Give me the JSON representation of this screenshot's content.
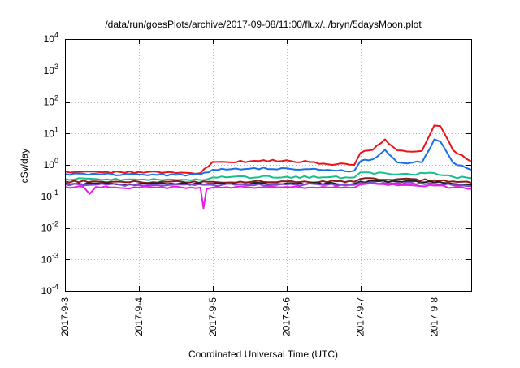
{
  "chart_data": {
    "type": "line",
    "title": "/data/run/goesPlots/archive/2017-09-08/11:00/flux/../bryn/5daysMoon.plot",
    "xlabel": "Coordinated Universal Time (UTC)",
    "ylabel": "cSv/day",
    "yscale": "log",
    "ylim": [
      0.0001,
      10000
    ],
    "y_ticks": [
      {
        "base": "10",
        "exp": "-4",
        "value": 0.0001
      },
      {
        "base": "10",
        "exp": "-3",
        "value": 0.001
      },
      {
        "base": "10",
        "exp": "-2",
        "value": 0.01
      },
      {
        "base": "10",
        "exp": "-1",
        "value": 0.1
      },
      {
        "base": "10",
        "exp": "0",
        "value": 1
      },
      {
        "base": "10",
        "exp": "1",
        "value": 10
      },
      {
        "base": "10",
        "exp": "2",
        "value": 100
      },
      {
        "base": "10",
        "exp": "3",
        "value": 1000
      },
      {
        "base": "10",
        "exp": "4",
        "value": 10000
      }
    ],
    "x_axis": "date",
    "xlim": [
      "2017-09-03",
      "2017-09-08T12:00"
    ],
    "x_ticks": [
      "2017-9-3",
      "2017-9-4",
      "2017-9-5",
      "2017-9-6",
      "2017-9-7",
      "2017-9-8"
    ],
    "grid": true,
    "legend": "none",
    "series": [
      {
        "color": "#e8141b",
        "x": [
          "2017-09-03",
          "2017-09-03T12:00",
          "2017-09-04",
          "2017-09-04T12:00",
          "2017-09-04T20:00",
          "2017-09-05",
          "2017-09-05T12:00",
          "2017-09-06",
          "2017-09-06T12:00",
          "2017-09-06T22:00",
          "2017-09-07",
          "2017-09-07T04:00",
          "2017-09-07T08:00",
          "2017-09-07T12:00",
          "2017-09-07T20:00",
          "2017-09-08",
          "2017-09-08T02:00",
          "2017-09-08T06:00",
          "2017-09-08T12:00"
        ],
        "values": [
          0.62,
          0.58,
          0.6,
          0.55,
          0.55,
          1.25,
          1.3,
          1.4,
          1.1,
          1.0,
          2.4,
          3.0,
          6.5,
          2.9,
          2.8,
          18,
          17,
          3.0,
          1.3
        ]
      },
      {
        "color": "#1a6fe8",
        "x": [
          "2017-09-03",
          "2017-09-03T12:00",
          "2017-09-04",
          "2017-09-04T12:00",
          "2017-09-04T20:00",
          "2017-09-05",
          "2017-09-05T12:00",
          "2017-09-06",
          "2017-09-06T12:00",
          "2017-09-06T22:00",
          "2017-09-07",
          "2017-09-07T04:00",
          "2017-09-07T08:00",
          "2017-09-07T12:00",
          "2017-09-07T20:00",
          "2017-09-08",
          "2017-09-08T02:00",
          "2017-09-08T06:00",
          "2017-09-08T12:00"
        ],
        "values": [
          0.52,
          0.5,
          0.5,
          0.48,
          0.5,
          0.7,
          0.75,
          0.78,
          0.68,
          0.65,
          1.3,
          1.5,
          3.0,
          1.2,
          1.2,
          6.5,
          5.5,
          1.2,
          0.7
        ]
      },
      {
        "color": "#19c08c",
        "x": [
          "2017-09-03",
          "2017-09-04",
          "2017-09-04T20:00",
          "2017-09-05",
          "2017-09-06",
          "2017-09-06T22:00",
          "2017-09-07",
          "2017-09-07T12:00",
          "2017-09-08",
          "2017-09-08T06:00",
          "2017-09-08T12:00"
        ],
        "values": [
          0.36,
          0.34,
          0.33,
          0.4,
          0.42,
          0.4,
          0.58,
          0.5,
          0.55,
          0.42,
          0.38
        ]
      },
      {
        "color": "#8b1a1a",
        "x": [
          "2017-09-03",
          "2017-09-04",
          "2017-09-05",
          "2017-09-06",
          "2017-09-06T22:00",
          "2017-09-07",
          "2017-09-08",
          "2017-09-08T12:00"
        ],
        "values": [
          0.3,
          0.29,
          0.29,
          0.3,
          0.29,
          0.36,
          0.33,
          0.27
        ]
      },
      {
        "color": "#222222",
        "x": [
          "2017-09-03",
          "2017-09-04",
          "2017-09-05",
          "2017-09-06",
          "2017-09-06T22:00",
          "2017-09-07",
          "2017-09-08",
          "2017-09-08T12:00"
        ],
        "values": [
          0.26,
          0.25,
          0.25,
          0.26,
          0.25,
          0.3,
          0.28,
          0.23
        ]
      },
      {
        "color": "#7a4fd0",
        "x": [
          "2017-09-03",
          "2017-09-04",
          "2017-09-05",
          "2017-09-06",
          "2017-09-06T22:00",
          "2017-09-07",
          "2017-09-08",
          "2017-09-08T12:00"
        ],
        "values": [
          0.24,
          0.23,
          0.23,
          0.24,
          0.23,
          0.27,
          0.25,
          0.21
        ]
      },
      {
        "color": "#e81be8",
        "x": [
          "2017-09-03",
          "2017-09-03T06:00",
          "2017-09-03T08:00",
          "2017-09-03T10:00",
          "2017-09-04",
          "2017-09-04T20:00",
          "2017-09-04T21:00",
          "2017-09-04T22:00",
          "2017-09-05",
          "2017-09-06",
          "2017-09-06T22:00",
          "2017-09-07",
          "2017-09-08",
          "2017-09-08T12:00"
        ],
        "values": [
          0.2,
          0.2,
          0.12,
          0.2,
          0.19,
          0.19,
          0.042,
          0.17,
          0.19,
          0.2,
          0.19,
          0.24,
          0.22,
          0.17
        ]
      }
    ]
  }
}
